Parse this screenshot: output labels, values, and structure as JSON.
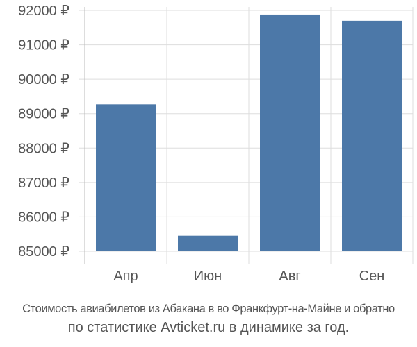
{
  "chart_data": {
    "type": "bar",
    "categories": [
      "Апр",
      "Июн",
      "Авг",
      "Сен"
    ],
    "values": [
      89270,
      85450,
      91880,
      91700
    ],
    "ylim": [
      85000,
      92000
    ],
    "yticks": [
      85000,
      86000,
      87000,
      88000,
      89000,
      90000,
      91000,
      92000
    ],
    "ytick_labels": [
      "85000 ₽",
      "86000 ₽",
      "87000 ₽",
      "88000 ₽",
      "89000 ₽",
      "90000 ₽",
      "91000 ₽",
      "92000 ₽"
    ],
    "grid": true,
    "bar_color": "#4c78a8",
    "grid_color": "#dddddd",
    "title": "",
    "xlabel": "",
    "ylabel": ""
  },
  "caption": {
    "line1": "Стоимость авиабилетов из Абакана в во Франкфурт-на-Майне и обратно",
    "line2": "по статистике Avticket.ru в динамике за год."
  }
}
